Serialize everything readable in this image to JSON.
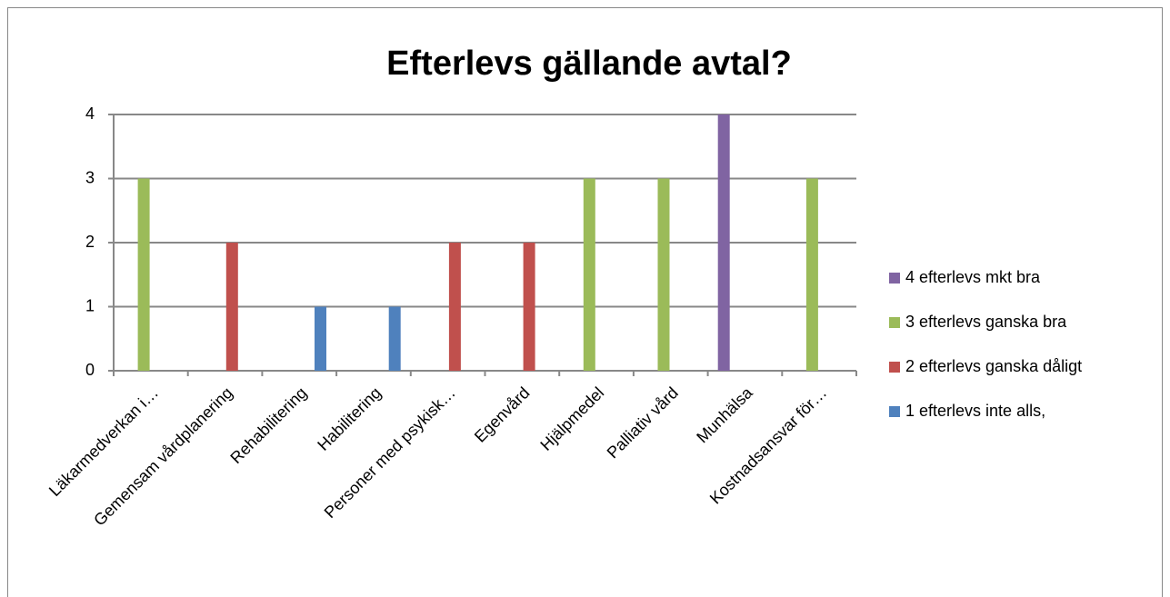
{
  "chart_data": {
    "type": "bar",
    "title": "Efterlevs gällande avtal?",
    "categories": [
      "Läkarmedverkan i…",
      "Gemensam vårdplanering",
      "Rehabilitering",
      "Habilitering",
      "Personer med psykisk…",
      "Egenvård",
      "Hjälpmedel",
      "Palliativ vård",
      "Munhälsa",
      "Kostnadsansvar för…"
    ],
    "series": [
      {
        "name": "4 efterlevs mkt bra",
        "color": "#8064a2",
        "values": [
          0,
          0,
          0,
          0,
          0,
          0,
          0,
          0,
          4,
          0
        ]
      },
      {
        "name": "3 efterlevs ganska bra",
        "color": "#9bbb59",
        "values": [
          3,
          0,
          0,
          0,
          0,
          0,
          3,
          3,
          0,
          3
        ]
      },
      {
        "name": "2 efterlevs ganska dåligt",
        "color": "#c0504d",
        "values": [
          0,
          2,
          0,
          0,
          2,
          2,
          0,
          0,
          0,
          0
        ]
      },
      {
        "name": "1 efterlevs inte alls,",
        "color": "#4f81bd",
        "values": [
          0,
          0,
          1,
          1,
          0,
          0,
          0,
          0,
          0,
          0
        ]
      }
    ],
    "ylim": [
      0,
      4
    ],
    "yticks": [
      0,
      1,
      2,
      3,
      4
    ],
    "grid": true,
    "legend": "right"
  }
}
